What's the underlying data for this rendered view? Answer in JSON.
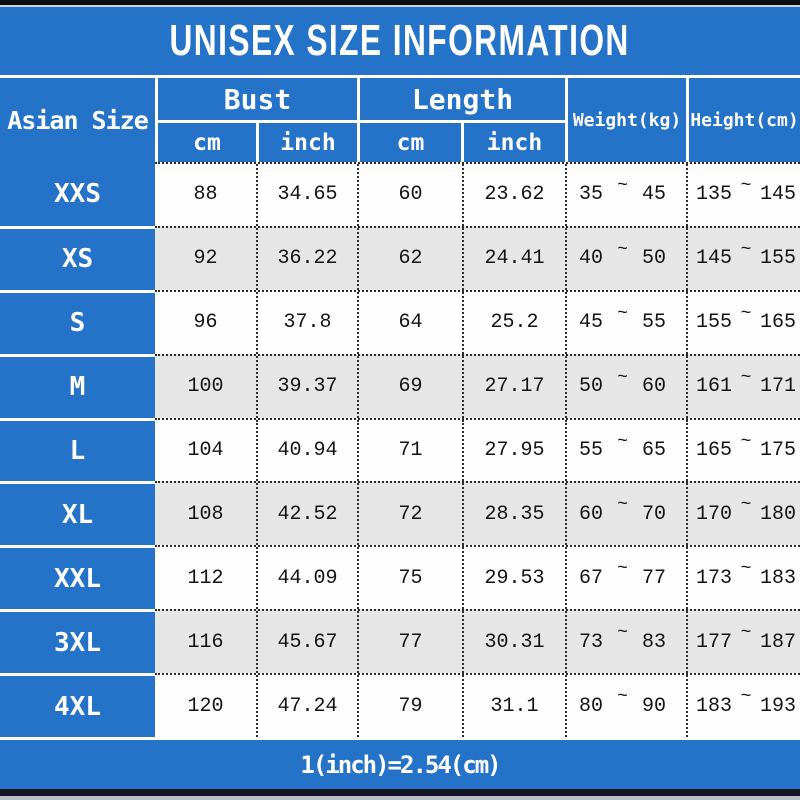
{
  "title": "UNISEX SIZE INFORMATION",
  "footer_note": "1(inch)=2.54(cm)",
  "colors": {
    "accent_blue": "#2573c8",
    "row_white": "#fdfdfd",
    "row_gray": "#e6e6e6",
    "border_white": "#ffffff",
    "dotted_border": "#2b2b2b",
    "top_bar_black": "#0d0d0d",
    "bottom_bar_navy": "#121521",
    "bottom_strip_gray": "#b8bdc4",
    "text_white": "#ffffff",
    "text_dark": "#141414"
  },
  "table": {
    "size_column_header": "Asian Size",
    "groups": [
      {
        "label": "Bust",
        "sub": [
          "cm",
          "inch"
        ]
      },
      {
        "label": "Length",
        "sub": [
          "cm",
          "inch"
        ]
      }
    ],
    "single_headers": [
      "Weight(kg)",
      "Height(cm)"
    ],
    "tilde": "~",
    "rows": [
      {
        "size": "XXS",
        "bust_cm": "88",
        "bust_inch": "34.65",
        "length_cm": "60",
        "length_inch": "23.62",
        "weight_min": "35",
        "weight_max": "45",
        "height_min": "135",
        "height_max": "145"
      },
      {
        "size": "XS",
        "bust_cm": "92",
        "bust_inch": "36.22",
        "length_cm": "62",
        "length_inch": "24.41",
        "weight_min": "40",
        "weight_max": "50",
        "height_min": "145",
        "height_max": "155"
      },
      {
        "size": "S",
        "bust_cm": "96",
        "bust_inch": "37.8",
        "length_cm": "64",
        "length_inch": "25.2",
        "weight_min": "45",
        "weight_max": "55",
        "height_min": "155",
        "height_max": "165"
      },
      {
        "size": "M",
        "bust_cm": "100",
        "bust_inch": "39.37",
        "length_cm": "69",
        "length_inch": "27.17",
        "weight_min": "50",
        "weight_max": "60",
        "height_min": "161",
        "height_max": "171"
      },
      {
        "size": "L",
        "bust_cm": "104",
        "bust_inch": "40.94",
        "length_cm": "71",
        "length_inch": "27.95",
        "weight_min": "55",
        "weight_max": "65",
        "height_min": "165",
        "height_max": "175"
      },
      {
        "size": "XL",
        "bust_cm": "108",
        "bust_inch": "42.52",
        "length_cm": "72",
        "length_inch": "28.35",
        "weight_min": "60",
        "weight_max": "70",
        "height_min": "170",
        "height_max": "180"
      },
      {
        "size": "XXL",
        "bust_cm": "112",
        "bust_inch": "44.09",
        "length_cm": "75",
        "length_inch": "29.53",
        "weight_min": "67",
        "weight_max": "77",
        "height_min": "173",
        "height_max": "183"
      },
      {
        "size": "3XL",
        "bust_cm": "116",
        "bust_inch": "45.67",
        "length_cm": "77",
        "length_inch": "30.31",
        "weight_min": "73",
        "weight_max": "83",
        "height_min": "177",
        "height_max": "187"
      },
      {
        "size": "4XL",
        "bust_cm": "120",
        "bust_inch": "47.24",
        "length_cm": "79",
        "length_inch": "31.1",
        "weight_min": "80",
        "weight_max": "90",
        "height_min": "183",
        "height_max": "193"
      }
    ]
  },
  "chart_data": {
    "type": "table",
    "title": "UNISEX SIZE INFORMATION",
    "columns": [
      "Asian Size",
      "Bust cm",
      "Bust inch",
      "Length cm",
      "Length inch",
      "Weight(kg)",
      "Height(cm)"
    ],
    "rows": [
      [
        "XXS",
        "88",
        "34.65",
        "60",
        "23.62",
        "35 ~ 45",
        "135 ~ 145"
      ],
      [
        "XS",
        "92",
        "36.22",
        "62",
        "24.41",
        "40 ~ 50",
        "145 ~ 155"
      ],
      [
        "S",
        "96",
        "37.8",
        "64",
        "25.2",
        "45 ~ 55",
        "155 ~ 165"
      ],
      [
        "M",
        "100",
        "39.37",
        "69",
        "27.17",
        "50 ~ 60",
        "161 ~ 171"
      ],
      [
        "L",
        "104",
        "40.94",
        "71",
        "27.95",
        "55 ~ 65",
        "165 ~ 175"
      ],
      [
        "XL",
        "108",
        "42.52",
        "72",
        "28.35",
        "60 ~ 70",
        "170 ~ 180"
      ],
      [
        "XXL",
        "112",
        "44.09",
        "75",
        "29.53",
        "67 ~ 77",
        "173 ~ 183"
      ],
      [
        "3XL",
        "116",
        "45.67",
        "77",
        "30.31",
        "73 ~ 83",
        "177 ~ 187"
      ],
      [
        "4XL",
        "120",
        "47.24",
        "79",
        "31.1",
        "80 ~ 90",
        "183 ~ 193"
      ]
    ],
    "note": "1(inch)=2.54(cm)"
  }
}
